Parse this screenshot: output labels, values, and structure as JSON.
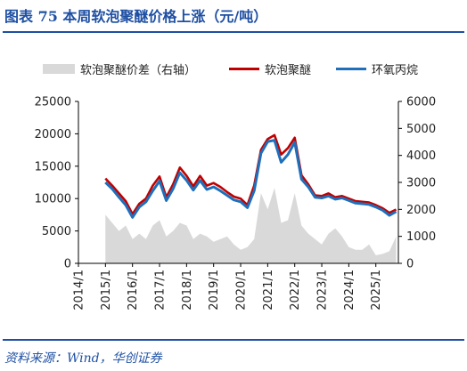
{
  "header": {
    "title": "图表 75    本周软泡聚醚价格上涨（元/吨）"
  },
  "footer": {
    "source": "资料来源：Wind，华创证券"
  },
  "colors": {
    "brand": "#1e4fa3",
    "spread_area": "#d9d9d9",
    "polyether": "#c00000",
    "propylene_oxide": "#1f6fba"
  },
  "chart_data": {
    "type": "line",
    "title": "",
    "xlabel": "",
    "ylabel": "",
    "y2label": "",
    "grid": false,
    "legend_position": "top",
    "xlim": [
      "2014/1",
      "2025/11"
    ],
    "ylim": [
      0,
      25000
    ],
    "y2lim": [
      0,
      6000
    ],
    "x_ticks": [
      "2014/1",
      "2015/1",
      "2016/1",
      "2017/1",
      "2018/1",
      "2019/1",
      "2020/1",
      "2021/1",
      "2022/1",
      "2023/1",
      "2024/1",
      "2025/1"
    ],
    "y_ticks": [
      "0",
      "5000",
      "10000",
      "15000",
      "20000",
      "25000"
    ],
    "y2_ticks": [
      "0",
      "1000",
      "2000",
      "3000",
      "4000",
      "5000",
      "6000"
    ],
    "x": [
      "2015/1",
      "2015/4",
      "2015/7",
      "2015/10",
      "2016/1",
      "2016/4",
      "2016/7",
      "2016/10",
      "2017/1",
      "2017/4",
      "2017/7",
      "2017/10",
      "2018/1",
      "2018/4",
      "2018/7",
      "2018/10",
      "2019/1",
      "2019/4",
      "2019/7",
      "2019/10",
      "2020/1",
      "2020/4",
      "2020/7",
      "2020/10",
      "2021/1",
      "2021/4",
      "2021/7",
      "2021/10",
      "2022/1",
      "2022/4",
      "2022/7",
      "2022/10",
      "2023/1",
      "2023/4",
      "2023/7",
      "2023/10",
      "2024/1",
      "2024/4",
      "2024/7",
      "2024/10",
      "2025/1",
      "2025/4",
      "2025/7",
      "2025/10"
    ],
    "series": [
      {
        "name": "软泡聚醚价差（右轴）",
        "axis": "right",
        "style": "area",
        "values": [
          1800,
          1500,
          1200,
          1400,
          900,
          1100,
          900,
          1400,
          1600,
          1000,
          1200,
          1500,
          1400,
          900,
          1100,
          1000,
          800,
          900,
          1000,
          700,
          500,
          600,
          900,
          2600,
          2000,
          2800,
          1500,
          1600,
          2600,
          1400,
          1100,
          900,
          700,
          1100,
          1300,
          1000,
          600,
          500,
          500,
          700,
          300,
          350,
          450,
          1000
        ]
      },
      {
        "name": "软泡聚醚",
        "axis": "left",
        "style": "line",
        "values": [
          13100,
          12000,
          10800,
          9600,
          7600,
          9200,
          10000,
          12000,
          13400,
          10200,
          12200,
          14800,
          13500,
          11900,
          13500,
          12000,
          12400,
          11800,
          11000,
          10300,
          10000,
          9000,
          12000,
          17500,
          19200,
          19800,
          16800,
          17800,
          19400,
          13600,
          12200,
          10500,
          10400,
          10800,
          10200,
          10400,
          10000,
          9600,
          9500,
          9400,
          9000,
          8500,
          7800,
          8300
        ]
      },
      {
        "name": "环氧丙烷",
        "axis": "left",
        "style": "line",
        "values": [
          12500,
          11500,
          10200,
          9000,
          7100,
          8700,
          9500,
          11200,
          12700,
          9700,
          11500,
          14000,
          12800,
          11300,
          12800,
          11400,
          11800,
          11200,
          10500,
          9800,
          9500,
          8600,
          11200,
          17000,
          18800,
          19000,
          15600,
          16800,
          18700,
          13000,
          11800,
          10200,
          10100,
          10400,
          9900,
          10100,
          9700,
          9300,
          9200,
          9100,
          8700,
          8200,
          7400,
          8000
        ]
      }
    ]
  }
}
